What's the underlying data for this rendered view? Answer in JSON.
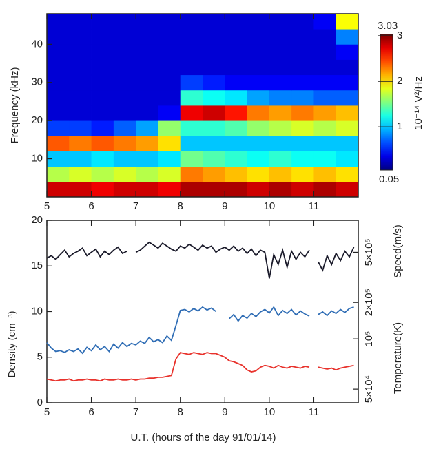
{
  "chart_data": [
    {
      "type": "heatmap",
      "ylabel": "Frequency (kHz)",
      "x": [
        5,
        5.5,
        6,
        6.5,
        7,
        7.5,
        8,
        8.5,
        9,
        9.5,
        10,
        10.5,
        11,
        11.5,
        12
      ],
      "y": [
        0,
        4,
        8,
        12,
        16,
        20,
        24,
        28,
        32,
        36,
        40,
        44,
        48
      ],
      "z": [
        [
          2.8,
          2.8,
          2.7,
          2.8,
          2.8,
          2.7,
          2.9,
          2.9,
          2.9,
          2.8,
          2.9,
          2.8,
          2.9,
          2.8
        ],
        [
          1.7,
          1.8,
          1.7,
          1.8,
          1.7,
          1.8,
          2.3,
          2.2,
          2.1,
          2.0,
          2.1,
          2.0,
          2.1,
          2.0
        ],
        [
          1.0,
          1.0,
          1.1,
          1.0,
          1.0,
          1.1,
          1.5,
          1.4,
          1.3,
          1.2,
          1.3,
          1.2,
          1.2,
          1.1
        ],
        [
          2.4,
          2.3,
          2.4,
          2.3,
          2.2,
          2.0,
          1.0,
          1.0,
          1.0,
          1.0,
          1.0,
          1.0,
          1.0,
          1.0
        ],
        [
          0.6,
          0.6,
          0.5,
          0.7,
          0.9,
          1.6,
          1.3,
          1.3,
          1.4,
          1.6,
          1.7,
          1.8,
          1.7,
          1.8
        ],
        [
          0.3,
          0.3,
          0.3,
          0.3,
          0.3,
          0.4,
          2.7,
          2.8,
          2.6,
          2.3,
          2.2,
          2.3,
          2.2,
          2.1
        ],
        [
          0.3,
          0.3,
          0.3,
          0.3,
          0.3,
          0.3,
          1.3,
          1.2,
          1.1,
          0.9,
          0.8,
          0.8,
          0.7,
          0.7
        ],
        [
          0.3,
          0.3,
          0.3,
          0.3,
          0.3,
          0.3,
          0.6,
          0.5,
          0.4,
          0.4,
          0.4,
          0.4,
          0.4,
          0.4
        ],
        [
          0.3,
          0.3,
          0.3,
          0.3,
          0.3,
          0.3,
          0.3,
          0.3,
          0.3,
          0.3,
          0.3,
          0.3,
          0.3,
          0.3
        ],
        [
          0.3,
          0.3,
          0.3,
          0.3,
          0.3,
          0.3,
          0.3,
          0.3,
          0.3,
          0.3,
          0.3,
          0.3,
          0.3,
          0.4
        ],
        [
          0.3,
          0.3,
          0.3,
          0.3,
          0.3,
          0.3,
          0.3,
          0.3,
          0.3,
          0.3,
          0.3,
          0.3,
          0.3,
          0.8
        ],
        [
          0.3,
          0.3,
          0.3,
          0.3,
          0.3,
          0.3,
          0.3,
          0.3,
          0.3,
          0.3,
          0.3,
          0.3,
          0.4,
          1.9
        ]
      ],
      "xlim": [
        5,
        12
      ],
      "xticks": [
        5,
        6,
        7,
        8,
        9,
        10,
        11
      ],
      "ylim": [
        0,
        48
      ],
      "yticks": [
        10,
        20,
        30,
        40
      ],
      "clim": [
        0.05,
        3.03
      ],
      "cticks": [
        1,
        2,
        3
      ],
      "colorbar_label": "10⁻¹⁴ V²/Hz",
      "colormap": "jet"
    },
    {
      "type": "line",
      "xlabel": "U.T. (hours of the day 91/01/14)",
      "ylabel": "Density (cm⁻³)",
      "y2label": "Speed(m/s)",
      "y3label": "Temperature(K)",
      "xlim": [
        5,
        12
      ],
      "xticks": [
        5,
        6,
        7,
        8,
        9,
        10,
        11
      ],
      "ylim": [
        0,
        20
      ],
      "yticks": [
        0,
        5,
        10,
        15,
        20
      ],
      "y2lim": [
        31900,
        897000
      ],
      "y2scale": "log",
      "y2ticks": [
        {
          "value": 200000,
          "label": "2×10⁵"
        },
        {
          "value": 500000,
          "label": "5×10⁵"
        }
      ],
      "y3lim": [
        41400,
        513000
      ],
      "y3scale": "log",
      "y3ticks": [
        {
          "value": 50000,
          "label": "5×10⁴"
        },
        {
          "value": 100000,
          "label": "10⁵"
        }
      ],
      "x": [
        5.0,
        5.1,
        5.2,
        5.3,
        5.4,
        5.5,
        5.6,
        5.7,
        5.8,
        5.9,
        6.0,
        6.1,
        6.2,
        6.3,
        6.4,
        6.5,
        6.6,
        6.7,
        6.8,
        6.9,
        7.0,
        7.1,
        7.2,
        7.3,
        7.4,
        7.5,
        7.6,
        7.7,
        7.8,
        7.9,
        8.0,
        8.1,
        8.2,
        8.3,
        8.4,
        8.5,
        8.6,
        8.7,
        8.8,
        8.9,
        9.0,
        9.1,
        9.2,
        9.3,
        9.4,
        9.5,
        9.6,
        9.7,
        9.8,
        9.9,
        10.0,
        10.1,
        10.2,
        10.3,
        10.4,
        10.5,
        10.6,
        10.7,
        10.8,
        10.9,
        11.0,
        11.1,
        11.2,
        11.3,
        11.4,
        11.5,
        11.6,
        11.7,
        11.8,
        11.9
      ],
      "series": [
        {
          "axis": "y",
          "color": "#e8322c",
          "values": [
            2.6,
            2.5,
            2.4,
            2.5,
            2.5,
            2.6,
            2.4,
            2.5,
            2.5,
            2.6,
            2.5,
            2.5,
            2.4,
            2.6,
            2.5,
            2.5,
            2.6,
            2.5,
            2.5,
            2.6,
            2.5,
            2.6,
            2.6,
            2.7,
            2.7,
            2.8,
            2.8,
            2.9,
            3.0,
            4.8,
            5.5,
            5.4,
            5.3,
            5.5,
            5.4,
            5.3,
            5.5,
            5.4,
            5.4,
            5.2,
            5.0,
            4.6,
            4.5,
            4.3,
            4.1,
            3.6,
            3.4,
            3.5,
            3.9,
            4.1,
            4.0,
            3.8,
            4.1,
            3.9,
            3.8,
            4.0,
            3.9,
            3.8,
            4.0,
            3.9,
            null,
            3.9,
            3.8,
            3.7,
            3.8,
            3.6,
            3.8,
            3.9,
            4.0,
            4.1
          ]
        },
        {
          "axis": "y2",
          "color": "#1a1a2a",
          "values": [
            450000,
            470000,
            440000,
            480000,
            520000,
            460000,
            490000,
            510000,
            540000,
            470000,
            500000,
            530000,
            460000,
            510000,
            480000,
            520000,
            550000,
            490000,
            510000,
            null,
            500000,
            520000,
            560000,
            600000,
            570000,
            540000,
            590000,
            560000,
            530000,
            510000,
            560000,
            540000,
            580000,
            550000,
            520000,
            570000,
            540000,
            560000,
            500000,
            530000,
            550000,
            520000,
            560000,
            510000,
            540000,
            490000,
            530000,
            470000,
            520000,
            500000,
            310000,
            480000,
            400000,
            520000,
            380000,
            510000,
            440000,
            500000,
            460000,
            520000,
            null,
            420000,
            360000,
            470000,
            400000,
            490000,
            430000,
            510000,
            460000,
            550000
          ]
        },
        {
          "axis": "y3",
          "color": "#2f6db5",
          "values": [
            95000,
            88000,
            84000,
            85000,
            83000,
            86000,
            84000,
            87000,
            82000,
            89000,
            85000,
            92000,
            86000,
            90000,
            84000,
            93000,
            88000,
            95000,
            90000,
            94000,
            92000,
            97000,
            94000,
            102000,
            96000,
            99000,
            95000,
            104000,
            98000,
            120000,
            148000,
            150000,
            145000,
            152000,
            147000,
            155000,
            149000,
            153000,
            146000,
            null,
            null,
            132000,
            140000,
            128000,
            138000,
            133000,
            142000,
            136000,
            145000,
            150000,
            143000,
            155000,
            138000,
            148000,
            142000,
            150000,
            139000,
            147000,
            141000,
            137000,
            null,
            140000,
            145000,
            138000,
            147000,
            142000,
            150000,
            144000,
            152000,
            155000
          ]
        }
      ]
    }
  ]
}
